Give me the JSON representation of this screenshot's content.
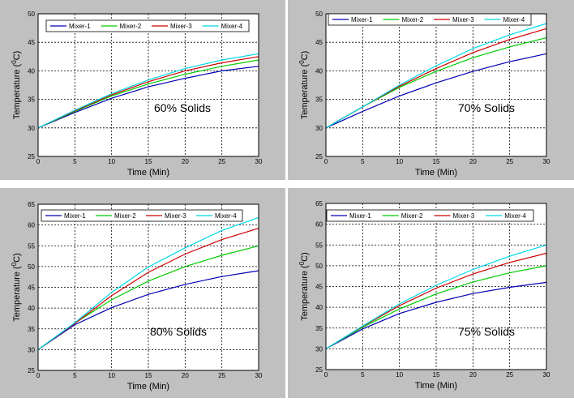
{
  "colors": {
    "panel_bg": "#c0c0c0",
    "plot_bg": "#ffffff",
    "grid": "#000000",
    "series": [
      "#0000b4",
      "#00cc00",
      "#cc0000",
      "#00d8e8"
    ]
  },
  "chart_data": [
    {
      "type": "line",
      "annotation": "60% Solids",
      "xlabel": "Time (Min)",
      "ylabel_main": "Temperature (",
      "ylabel_sup": "0",
      "ylabel_tail": "C)",
      "xlim": [
        0,
        30
      ],
      "ylim": [
        25,
        50
      ],
      "xticks": [
        "0",
        "5",
        "10",
        "15",
        "20",
        "25",
        "30"
      ],
      "yticks": [
        "25",
        "30",
        "35",
        "40",
        "45",
        "50"
      ],
      "grid": true,
      "legend": "top",
      "x": [
        0,
        5,
        10,
        15,
        20,
        25,
        30
      ],
      "series": [
        {
          "name": "Mixer-1",
          "values": [
            30,
            32.7,
            35.2,
            37.2,
            38.7,
            40.0,
            40.8
          ]
        },
        {
          "name": "Mixer-2",
          "values": [
            30,
            32.9,
            35.6,
            37.7,
            39.4,
            40.8,
            41.9
          ]
        },
        {
          "name": "Mixer-3",
          "values": [
            30,
            33.0,
            35.8,
            38.1,
            40.0,
            41.4,
            42.5
          ]
        },
        {
          "name": "Mixer-4",
          "values": [
            30,
            33.1,
            36.0,
            38.4,
            40.4,
            41.9,
            43.0
          ]
        }
      ]
    },
    {
      "type": "line",
      "annotation": "70% Solids",
      "xlabel": "Time (Min)",
      "ylabel_main": "Temperature (",
      "ylabel_sup": "0",
      "ylabel_tail": "C)",
      "xlim": [
        0,
        30
      ],
      "ylim": [
        25,
        50
      ],
      "xticks": [
        "0",
        "5",
        "10",
        "15",
        "20",
        "25",
        "30"
      ],
      "yticks": [
        "25",
        "30",
        "35",
        "40",
        "45",
        "50"
      ],
      "grid": true,
      "legend": "top",
      "x": [
        0,
        5,
        10,
        15,
        20,
        25,
        30
      ],
      "series": [
        {
          "name": "Mixer-1",
          "values": [
            30,
            32.9,
            35.6,
            37.9,
            39.9,
            41.6,
            43.0
          ]
        },
        {
          "name": "Mixer-2",
          "values": [
            30,
            33.7,
            37.1,
            39.9,
            42.3,
            44.2,
            45.8
          ]
        },
        {
          "name": "Mixer-3",
          "values": [
            30,
            33.7,
            37.3,
            40.4,
            43.2,
            45.5,
            47.4
          ]
        },
        {
          "name": "Mixer-4",
          "values": [
            30,
            33.7,
            37.5,
            40.9,
            43.9,
            46.3,
            48.3
          ]
        }
      ]
    },
    {
      "type": "line",
      "annotation": "80% Solids",
      "xlabel": "Time (Min)",
      "ylabel_main": "Temperature (",
      "ylabel_sup": "0",
      "ylabel_tail": "C)",
      "xlim": [
        0,
        30
      ],
      "ylim": [
        25,
        65
      ],
      "xticks": [
        "0",
        "5",
        "10",
        "15",
        "20",
        "25",
        "30"
      ],
      "yticks": [
        "25",
        "30",
        "35",
        "40",
        "45",
        "50",
        "55",
        "60",
        "65"
      ],
      "grid": true,
      "legend": "top",
      "x": [
        0,
        5,
        10,
        15,
        20,
        25,
        30
      ],
      "series": [
        {
          "name": "Mixer-1",
          "values": [
            30,
            36.0,
            40.1,
            43.3,
            45.7,
            47.6,
            49.0
          ]
        },
        {
          "name": "Mixer-2",
          "values": [
            30,
            36.4,
            42.0,
            46.5,
            50.0,
            52.7,
            55.0
          ]
        },
        {
          "name": "Mixer-3",
          "values": [
            30,
            36.3,
            43.0,
            48.6,
            53.0,
            56.5,
            59.2
          ]
        },
        {
          "name": "Mixer-4",
          "values": [
            30,
            36.5,
            43.8,
            49.9,
            54.5,
            58.7,
            61.8
          ]
        }
      ]
    },
    {
      "type": "line",
      "annotation": "75% Solids",
      "xlabel": "Time (Min)",
      "ylabel_main": "Temperature (",
      "ylabel_sup": "0",
      "ylabel_tail": "C)",
      "xlim": [
        0,
        30
      ],
      "ylim": [
        25,
        65
      ],
      "xticks": [
        "0",
        "5",
        "10",
        "15",
        "20",
        "25",
        "30"
      ],
      "yticks": [
        "25",
        "30",
        "35",
        "40",
        "45",
        "50",
        "55",
        "60",
        "65"
      ],
      "grid": true,
      "legend": "top",
      "x": [
        0,
        5,
        10,
        15,
        20,
        25,
        30
      ],
      "series": [
        {
          "name": "Mixer-1",
          "values": [
            30,
            34.8,
            38.5,
            41.2,
            43.3,
            44.8,
            46.0
          ]
        },
        {
          "name": "Mixer-2",
          "values": [
            30,
            35.2,
            39.6,
            43.2,
            46.1,
            48.3,
            50.0
          ]
        },
        {
          "name": "Mixer-3",
          "values": [
            30,
            35.4,
            40.4,
            44.6,
            48.0,
            50.8,
            53.0
          ]
        },
        {
          "name": "Mixer-4",
          "values": [
            30,
            35.5,
            40.8,
            45.3,
            49.1,
            52.3,
            55.0
          ]
        }
      ]
    }
  ]
}
